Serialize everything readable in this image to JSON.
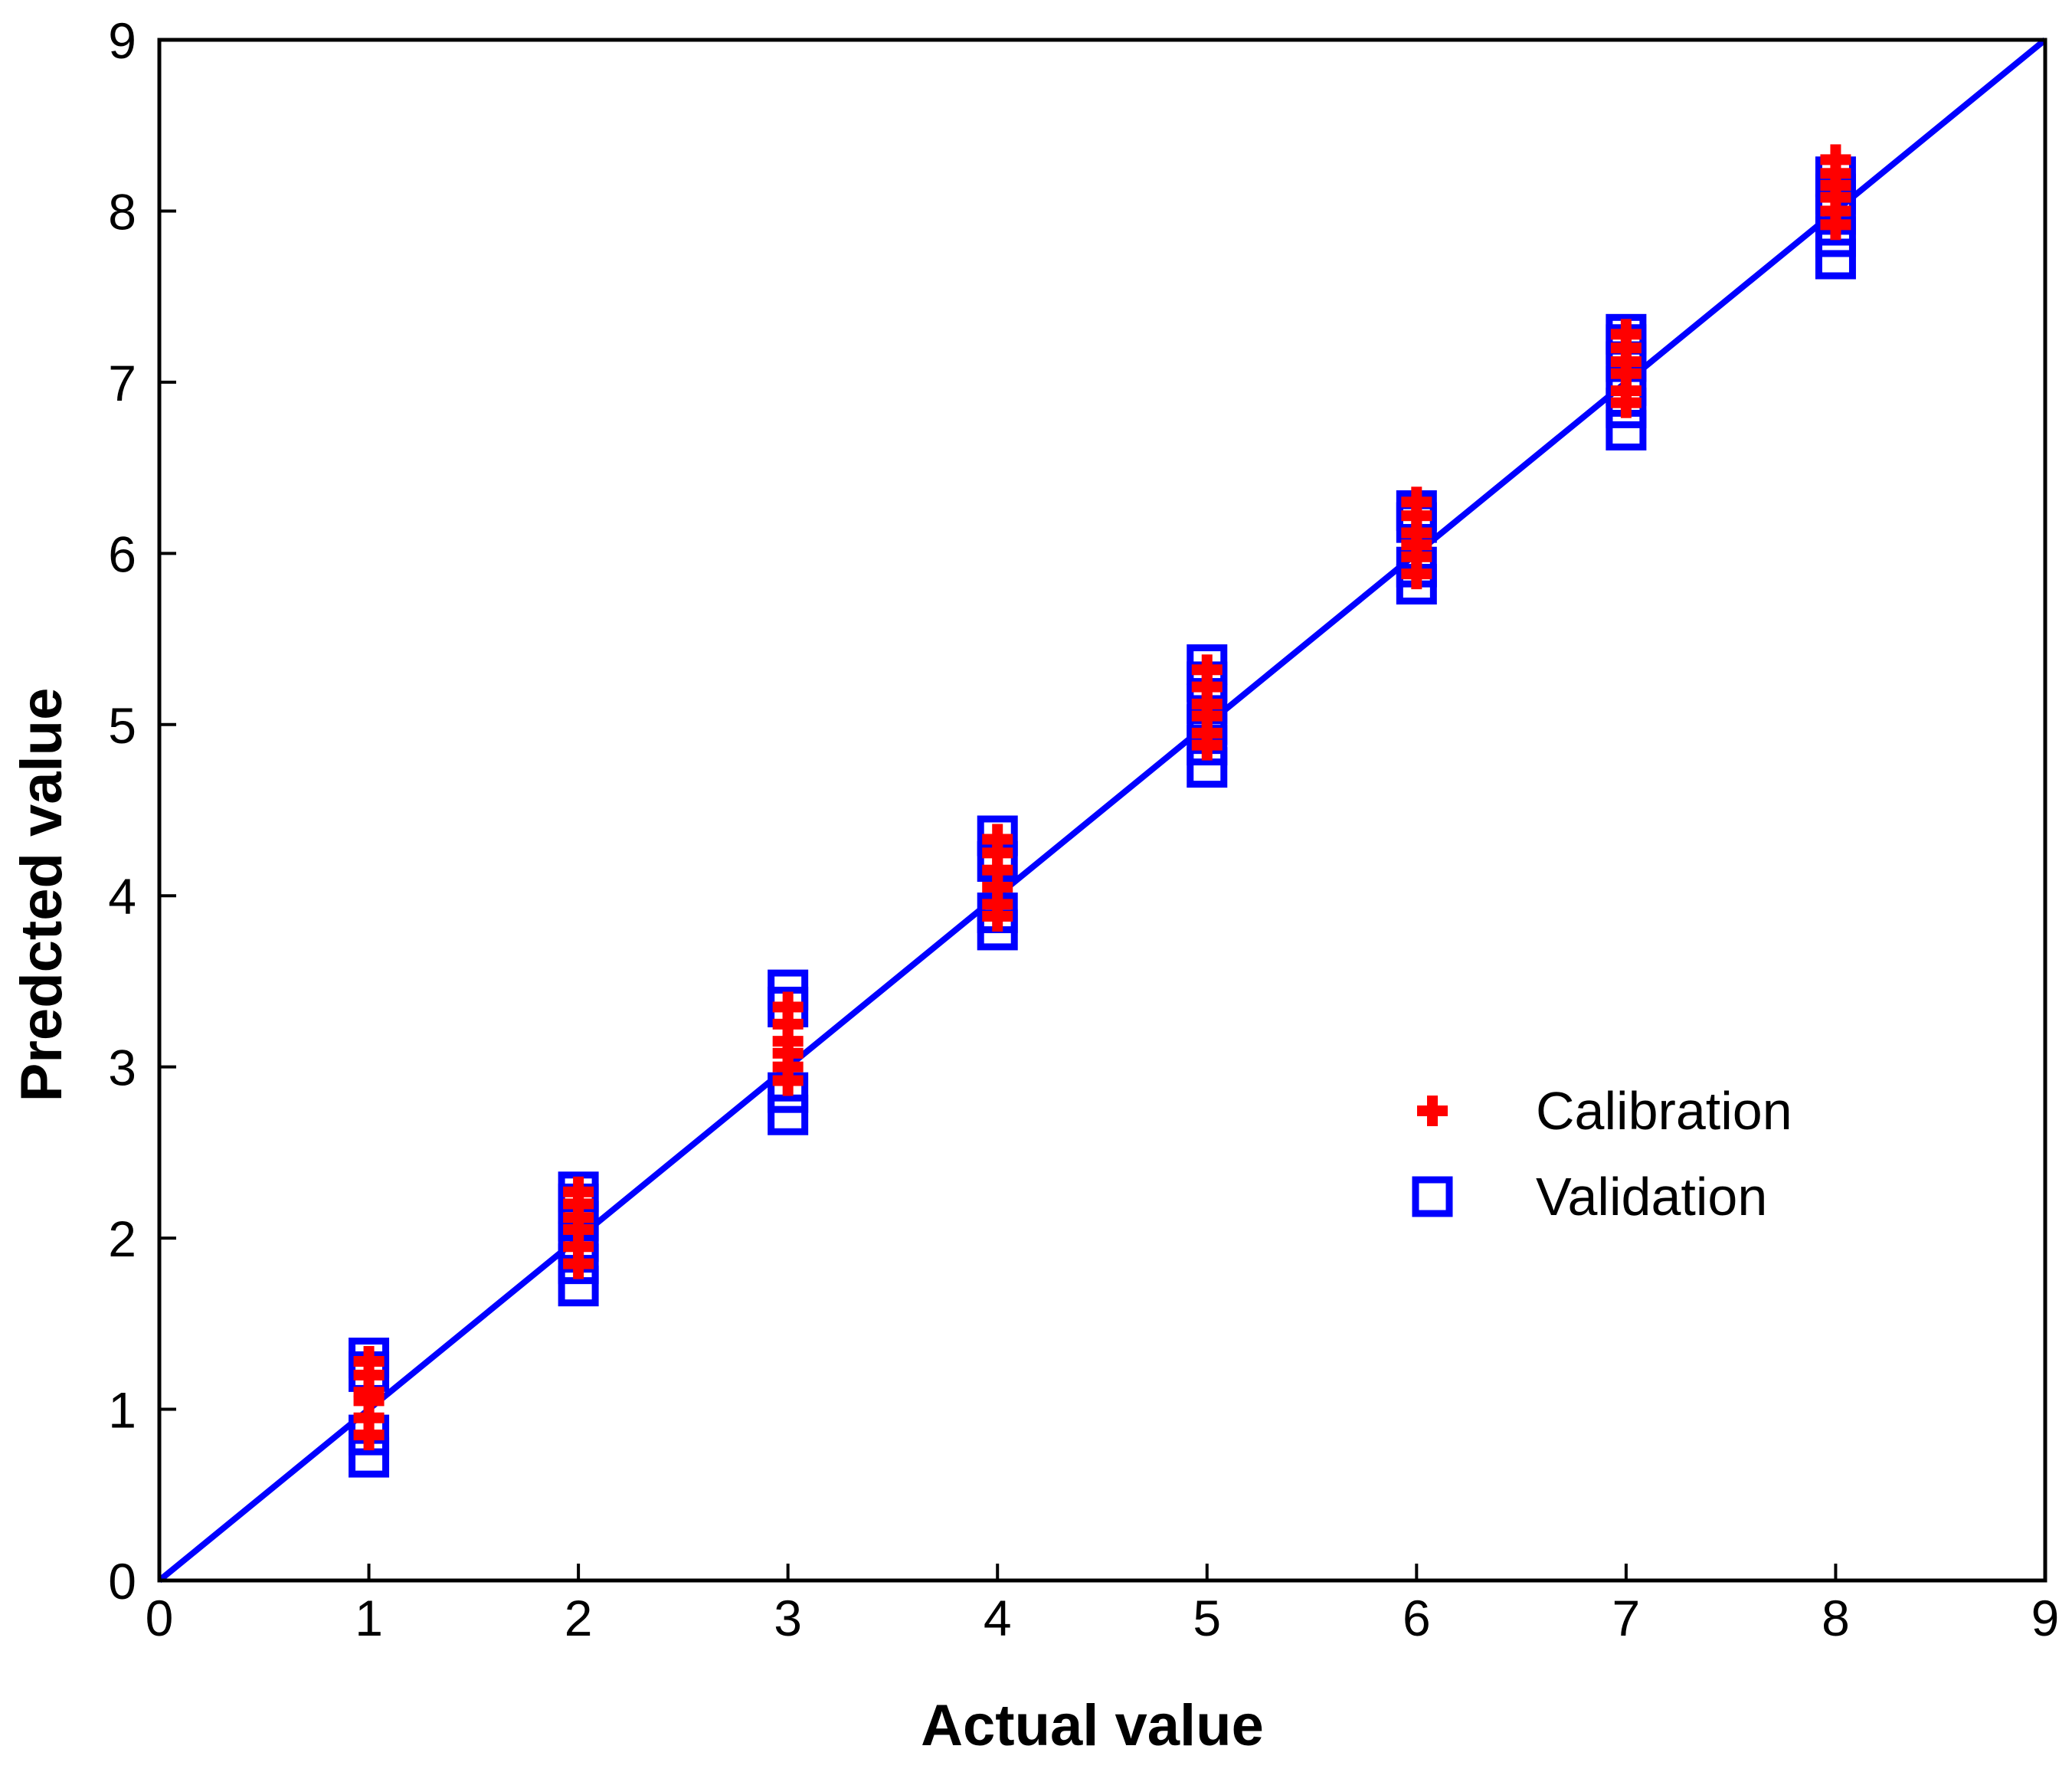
{
  "chart_data": {
    "type": "scatter",
    "title": "",
    "xlabel": "Actual value",
    "ylabel": "Predcted value",
    "xlim": [
      0,
      9
    ],
    "ylim": [
      0,
      9
    ],
    "x_ticks": [
      "0",
      "1",
      "2",
      "3",
      "4",
      "5",
      "6",
      "7",
      "8",
      "9"
    ],
    "y_ticks": [
      "0",
      "1",
      "2",
      "3",
      "4",
      "5",
      "6",
      "7",
      "8",
      "9"
    ],
    "grid": false,
    "legend_position": "center-right",
    "reference_line": {
      "name": "y = x",
      "x": [
        0,
        9
      ],
      "y": [
        0,
        9
      ],
      "color": "#0000ff"
    },
    "series": [
      {
        "name": "Calibration",
        "marker": "plus",
        "color": "#ff0000",
        "points": [
          [
            1,
            0.85
          ],
          [
            1,
            0.95
          ],
          [
            1,
            1.05
          ],
          [
            1,
            1.1
          ],
          [
            1,
            1.2
          ],
          [
            1,
            1.28
          ],
          [
            2,
            1.85
          ],
          [
            2,
            1.95
          ],
          [
            2,
            2.05
          ],
          [
            2,
            2.12
          ],
          [
            2,
            2.2
          ],
          [
            2,
            2.27
          ],
          [
            3,
            2.92
          ],
          [
            3,
            3.0
          ],
          [
            3,
            3.08
          ],
          [
            3,
            3.15
          ],
          [
            3,
            3.25
          ],
          [
            3,
            3.35
          ],
          [
            4,
            3.88
          ],
          [
            4,
            3.95
          ],
          [
            4,
            4.05
          ],
          [
            4,
            4.15
          ],
          [
            4,
            4.25
          ],
          [
            4,
            4.33
          ],
          [
            5,
            4.88
          ],
          [
            5,
            4.95
          ],
          [
            5,
            5.05
          ],
          [
            5,
            5.12
          ],
          [
            5,
            5.22
          ],
          [
            5,
            5.32
          ],
          [
            6,
            5.88
          ],
          [
            6,
            5.98
          ],
          [
            6,
            6.05
          ],
          [
            6,
            6.12
          ],
          [
            6,
            6.22
          ],
          [
            6,
            6.3
          ],
          [
            7,
            6.88
          ],
          [
            7,
            6.95
          ],
          [
            7,
            7.05
          ],
          [
            7,
            7.12
          ],
          [
            7,
            7.2
          ],
          [
            7,
            7.28
          ],
          [
            8,
            7.92
          ],
          [
            8,
            8.0
          ],
          [
            8,
            8.08
          ],
          [
            8,
            8.15
          ],
          [
            8,
            8.22
          ],
          [
            8,
            8.3
          ]
        ]
      },
      {
        "name": "Validation",
        "marker": "square",
        "color": "#0000ff",
        "points": [
          [
            1,
            0.72
          ],
          [
            1,
            0.85
          ],
          [
            1,
            1.22
          ],
          [
            1,
            1.3
          ],
          [
            2,
            1.72
          ],
          [
            2,
            1.85
          ],
          [
            2,
            1.98
          ],
          [
            2,
            2.1
          ],
          [
            2,
            2.2
          ],
          [
            2,
            2.27
          ],
          [
            3,
            2.72
          ],
          [
            3,
            2.85
          ],
          [
            3,
            3.35
          ],
          [
            3,
            3.45
          ],
          [
            4,
            3.8
          ],
          [
            4,
            3.9
          ],
          [
            4,
            4.2
          ],
          [
            4,
            4.35
          ],
          [
            5,
            4.75
          ],
          [
            5,
            4.88
          ],
          [
            5,
            5.0
          ],
          [
            5,
            5.12
          ],
          [
            5,
            5.25
          ],
          [
            5,
            5.35
          ],
          [
            6,
            5.82
          ],
          [
            6,
            5.92
          ],
          [
            6,
            6.18
          ],
          [
            6,
            6.25
          ],
          [
            7,
            6.72
          ],
          [
            7,
            6.85
          ],
          [
            7,
            6.98
          ],
          [
            7,
            7.12
          ],
          [
            7,
            7.22
          ],
          [
            7,
            7.28
          ],
          [
            8,
            7.72
          ],
          [
            8,
            7.85
          ],
          [
            8,
            7.98
          ],
          [
            8,
            8.1
          ],
          [
            8,
            8.2
          ]
        ]
      }
    ]
  }
}
